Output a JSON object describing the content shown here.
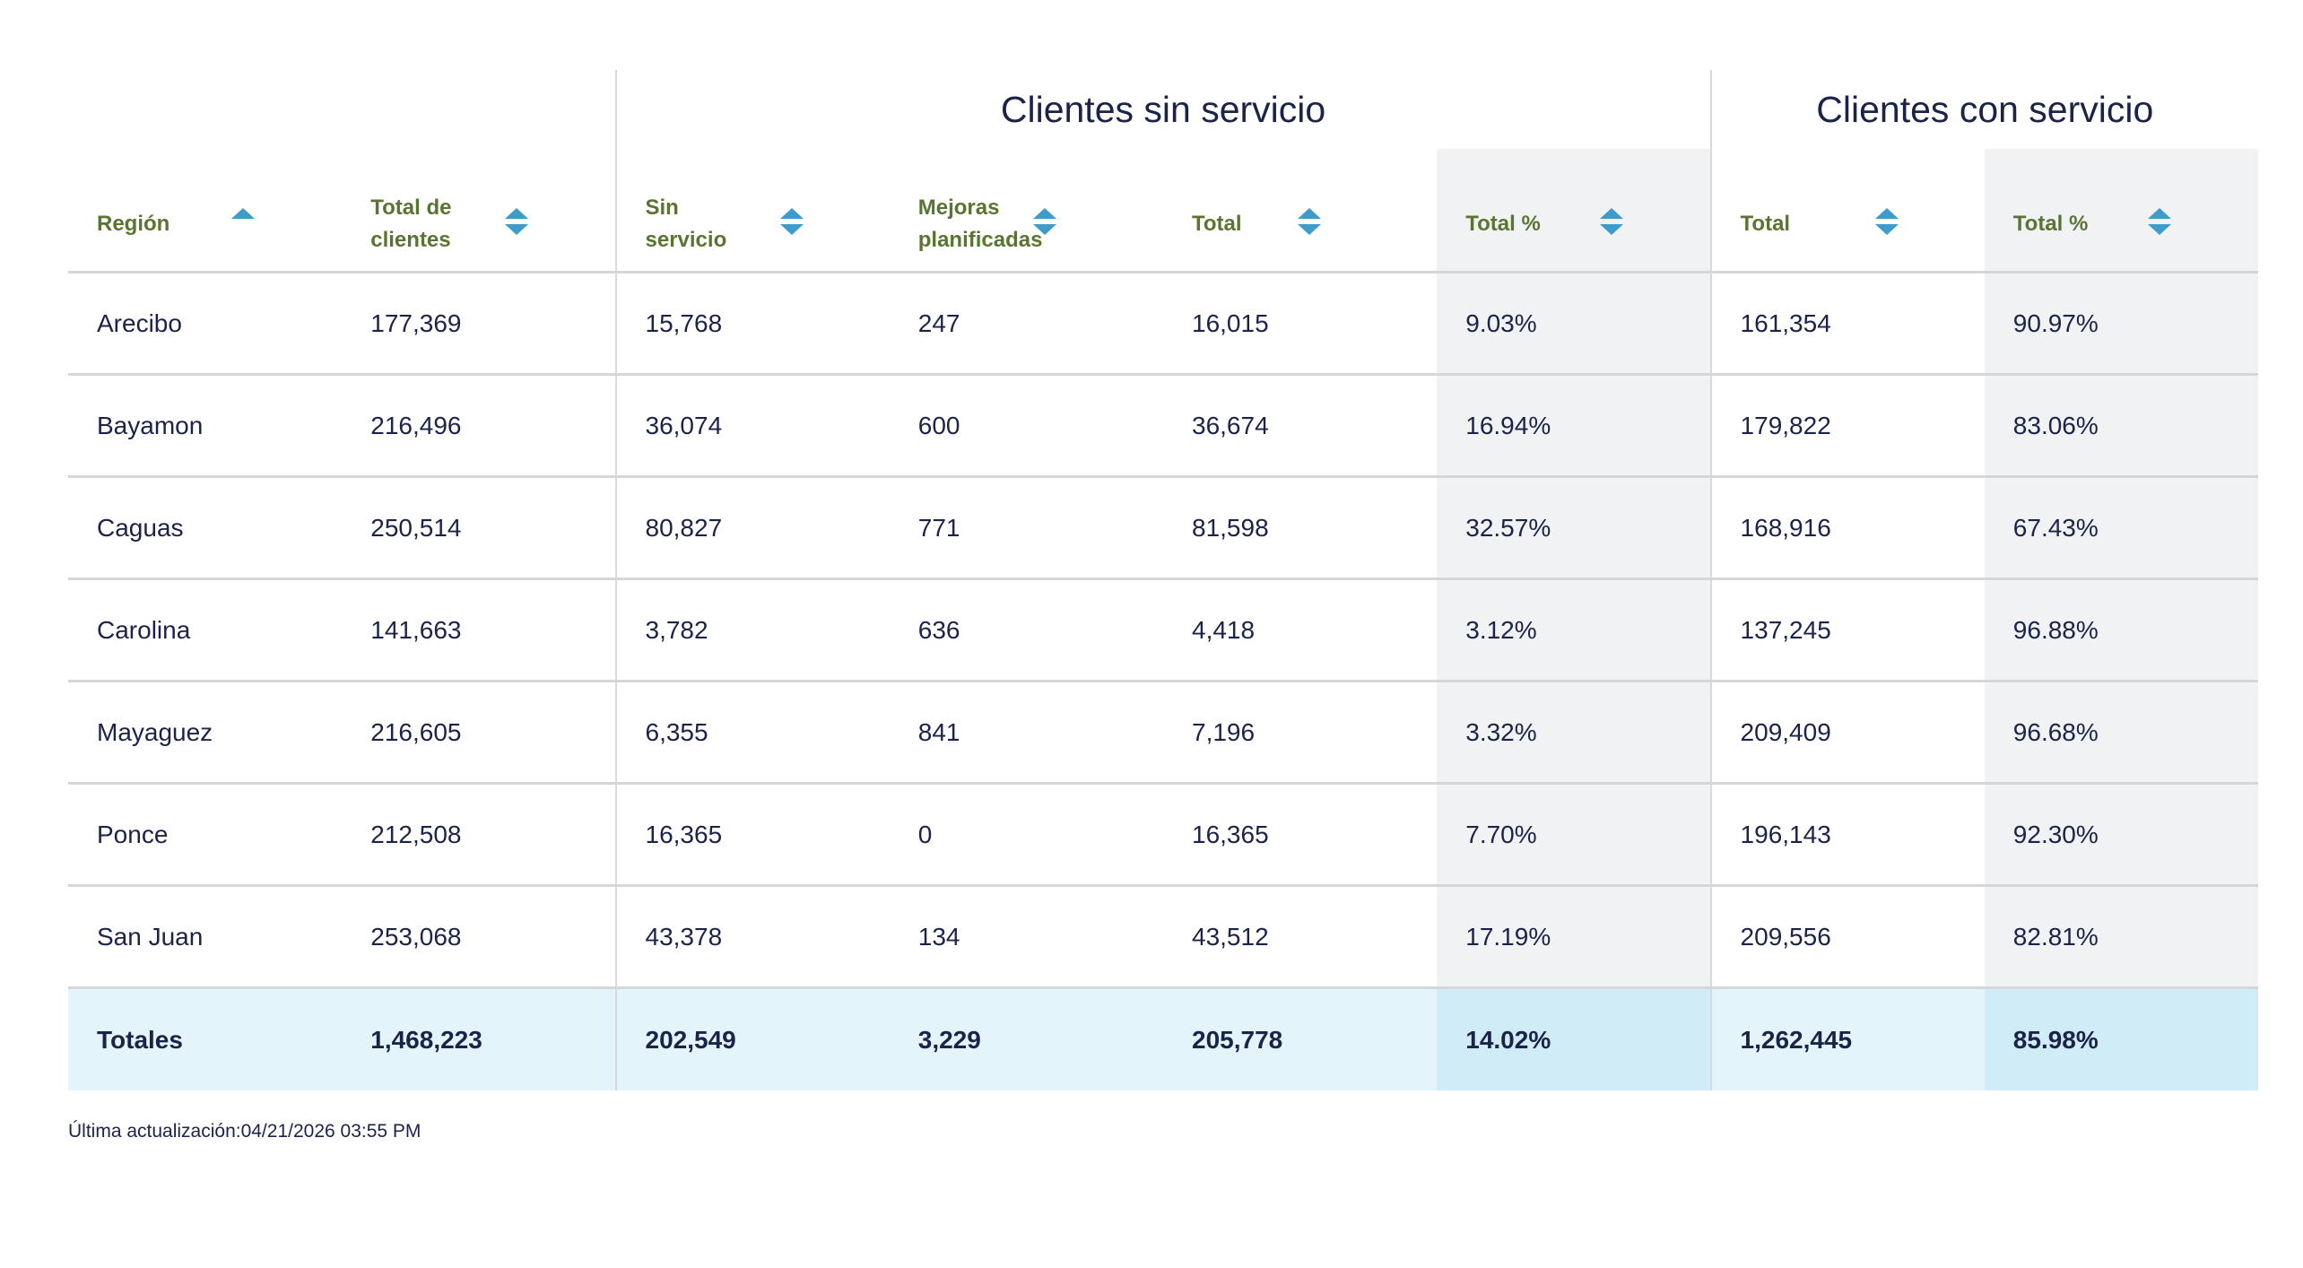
{
  "table": {
    "groups": [
      {
        "label": "",
        "span": 2
      },
      {
        "label": "Clientes sin servicio",
        "span": 4
      },
      {
        "label": "Clientes con servicio",
        "span": 2
      }
    ],
    "columns": [
      {
        "label": "Región",
        "sort": "asc"
      },
      {
        "label": "Total de clientes",
        "sort": "both"
      },
      {
        "label": "Sin servicio",
        "sort": "both"
      },
      {
        "label": "Mejoras planificadas",
        "sort": "both"
      },
      {
        "label": "Total",
        "sort": "both"
      },
      {
        "label": "Total %",
        "sort": "both"
      },
      {
        "label": "Total",
        "sort": "both"
      },
      {
        "label": "Total %",
        "sort": "both"
      }
    ],
    "rows": [
      [
        "Arecibo",
        "177,369",
        "15,768",
        "247",
        "16,015",
        "9.03%",
        "161,354",
        "90.97%"
      ],
      [
        "Bayamon",
        "216,496",
        "36,074",
        "600",
        "36,674",
        "16.94%",
        "179,822",
        "83.06%"
      ],
      [
        "Caguas",
        "250,514",
        "80,827",
        "771",
        "81,598",
        "32.57%",
        "168,916",
        "67.43%"
      ],
      [
        "Carolina",
        "141,663",
        "3,782",
        "636",
        "4,418",
        "3.12%",
        "137,245",
        "96.88%"
      ],
      [
        "Mayaguez",
        "216,605",
        "6,355",
        "841",
        "7,196",
        "3.32%",
        "209,409",
        "96.68%"
      ],
      [
        "Ponce",
        "212,508",
        "16,365",
        "0",
        "16,365",
        "7.70%",
        "196,143",
        "92.30%"
      ],
      [
        "San Juan",
        "253,068",
        "43,378",
        "134",
        "43,512",
        "17.19%",
        "209,556",
        "82.81%"
      ]
    ],
    "totals": [
      "Totales",
      "1,468,223",
      "202,549",
      "3,229",
      "205,778",
      "14.02%",
      "1,262,445",
      "85.98%"
    ]
  },
  "footer": {
    "last_updated": "Última actualización:04/21/2026 03:55 PM"
  },
  "colors": {
    "header_text": "#5a7431",
    "sort_icon": "#3e9ccb",
    "body_text": "#1b2348",
    "totals_bg": "#e3f4fa",
    "shaded_col": "#f1f2f4"
  }
}
